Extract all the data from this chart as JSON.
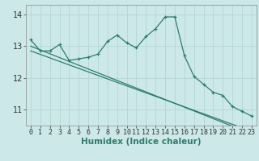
{
  "xlabel": "Humidex (Indice chaleur)",
  "x": [
    0,
    1,
    2,
    3,
    4,
    5,
    6,
    7,
    8,
    9,
    10,
    11,
    12,
    13,
    14,
    15,
    16,
    17,
    18,
    19,
    20,
    21,
    22,
    23
  ],
  "y_line": [
    13.2,
    12.85,
    12.85,
    13.05,
    12.55,
    12.6,
    12.65,
    12.75,
    13.15,
    13.35,
    13.1,
    12.95,
    13.3,
    13.55,
    13.92,
    13.92,
    12.7,
    12.05,
    11.8,
    11.55,
    11.45,
    11.1,
    10.95,
    10.8
  ],
  "y_trend1": [
    13.0,
    12.88,
    12.76,
    12.64,
    12.52,
    12.4,
    12.28,
    12.16,
    12.04,
    11.92,
    11.8,
    11.68,
    11.56,
    11.44,
    11.32,
    11.2,
    11.08,
    10.96,
    10.84,
    10.72,
    10.6,
    10.48,
    10.36,
    10.24
  ],
  "y_trend2": [
    12.85,
    12.74,
    12.63,
    12.52,
    12.41,
    12.3,
    12.19,
    12.08,
    11.97,
    11.86,
    11.75,
    11.64,
    11.53,
    11.42,
    11.31,
    11.2,
    11.09,
    10.98,
    10.87,
    10.76,
    10.65,
    10.54,
    10.43,
    10.32
  ],
  "line_color": "#2e7d6e",
  "bg_color": "#cce8e8",
  "grid_color": "#b8d8d8",
  "ylim": [
    10.5,
    14.3
  ],
  "yticks": [
    11,
    12,
    13,
    14
  ],
  "xticks": [
    0,
    1,
    2,
    3,
    4,
    5,
    6,
    7,
    8,
    9,
    10,
    11,
    12,
    13,
    14,
    15,
    16,
    17,
    18,
    19,
    20,
    21,
    22,
    23
  ],
  "tick_fontsize": 6.0,
  "xlabel_fontsize": 7.5
}
